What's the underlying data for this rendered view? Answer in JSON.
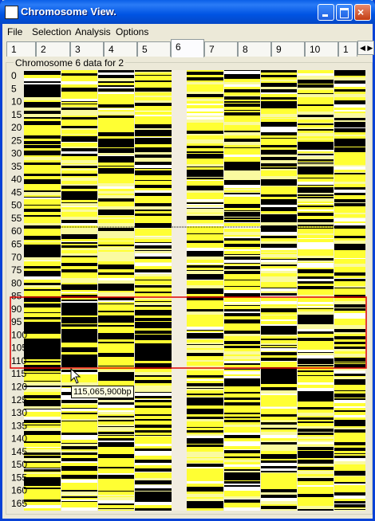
{
  "window": {
    "title": "Chromosome View."
  },
  "menu": [
    "File",
    "Selection",
    "Analysis",
    "Options"
  ],
  "tabs": [
    "1",
    "2",
    "3",
    "4",
    "5",
    "6",
    "7",
    "8",
    "9",
    "10",
    "1"
  ],
  "group_label": "Chromosome 6 data for  2",
  "axis_labels": [
    "0",
    "5",
    "10",
    "15",
    "20",
    "25",
    "30",
    "35",
    "40",
    "45",
    "50",
    "55",
    "60",
    "65",
    "70",
    "75",
    "80",
    "85",
    "90",
    "95",
    "100",
    "105",
    "110",
    "115",
    "120",
    "125",
    "130",
    "135",
    "140",
    "145",
    "150",
    "155",
    "160",
    "165"
  ],
  "tooltip": "115,065,900bp"
}
